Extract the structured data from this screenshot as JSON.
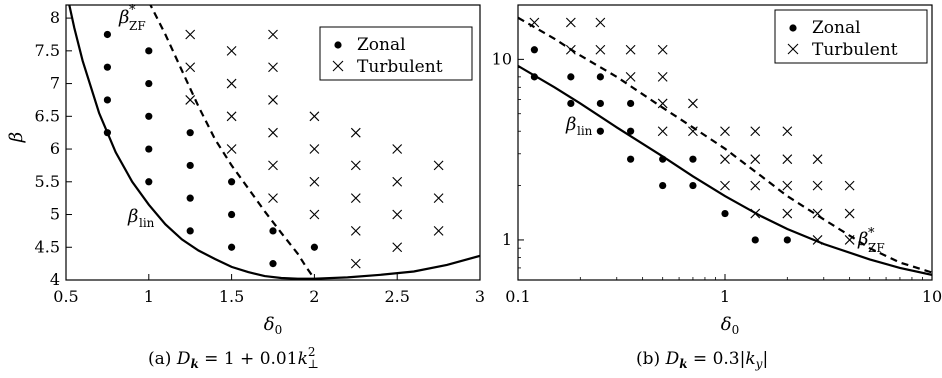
{
  "chart_data": [
    {
      "type": "scatter",
      "panel": "a",
      "caption": "(a) D_k = 1 + 0.01k_⊥²",
      "xlabel": "δ₀",
      "ylabel": "β",
      "xlim": [
        0.5,
        3
      ],
      "ylim": [
        4,
        8.2
      ],
      "yscale": "linear",
      "xticks": [
        "0.5",
        "1",
        "1.5",
        "2",
        "2.5",
        "3"
      ],
      "yticks": [
        "4",
        "4.5",
        "5",
        "5.5",
        "6",
        "6.5",
        "7",
        "7.5",
        "8"
      ],
      "legend": {
        "position": "top-right",
        "entries": [
          "Zonal",
          "Turbulent"
        ]
      },
      "series": [
        {
          "name": "Zonal",
          "marker": "dot",
          "points": [
            [
              0.75,
              7.75
            ],
            [
              0.75,
              7.25
            ],
            [
              0.75,
              6.75
            ],
            [
              0.75,
              6.25
            ],
            [
              1,
              7.5
            ],
            [
              1,
              7
            ],
            [
              1,
              6.5
            ],
            [
              1,
              6
            ],
            [
              1,
              5.5
            ],
            [
              1.25,
              6.25
            ],
            [
              1.25,
              5.75
            ],
            [
              1.25,
              5.25
            ],
            [
              1.25,
              4.75
            ],
            [
              1.5,
              5.5
            ],
            [
              1.5,
              5
            ],
            [
              1.5,
              4.5
            ],
            [
              1.75,
              4.75
            ],
            [
              1.75,
              4.25
            ],
            [
              2,
              4.5
            ]
          ]
        },
        {
          "name": "Turbulent",
          "marker": "cross",
          "points": [
            [
              1.25,
              7.75
            ],
            [
              1.25,
              7.25
            ],
            [
              1.25,
              6.75
            ],
            [
              1.5,
              7.5
            ],
            [
              1.5,
              7
            ],
            [
              1.5,
              6.5
            ],
            [
              1.5,
              6
            ],
            [
              1.75,
              7.75
            ],
            [
              1.75,
              7.25
            ],
            [
              1.75,
              6.75
            ],
            [
              1.75,
              6.25
            ],
            [
              1.75,
              5.75
            ],
            [
              1.75,
              5.25
            ],
            [
              2,
              6.5
            ],
            [
              2,
              6
            ],
            [
              2,
              5.5
            ],
            [
              2,
              5
            ],
            [
              2.25,
              6.25
            ],
            [
              2.25,
              5.75
            ],
            [
              2.25,
              5.25
            ],
            [
              2.25,
              4.75
            ],
            [
              2.25,
              4.25
            ],
            [
              2.5,
              6
            ],
            [
              2.5,
              5.5
            ],
            [
              2.5,
              5
            ],
            [
              2.5,
              4.5
            ],
            [
              2.75,
              5.75
            ],
            [
              2.75,
              5.25
            ],
            [
              2.75,
              4.75
            ]
          ]
        }
      ],
      "curves": [
        {
          "label": "β_lin",
          "style": "solid",
          "points": [
            [
              0.52,
              8.2
            ],
            [
              0.55,
              7.85
            ],
            [
              0.6,
              7.35
            ],
            [
              0.7,
              6.55
            ],
            [
              0.8,
              5.95
            ],
            [
              0.9,
              5.5
            ],
            [
              1.0,
              5.15
            ],
            [
              1.1,
              4.85
            ],
            [
              1.2,
              4.62
            ],
            [
              1.3,
              4.45
            ],
            [
              1.4,
              4.32
            ],
            [
              1.5,
              4.2
            ],
            [
              1.6,
              4.12
            ],
            [
              1.7,
              4.06
            ],
            [
              1.8,
              4.03
            ],
            [
              1.9,
              4.02
            ],
            [
              2.0,
              4.02
            ],
            [
              2.2,
              4.04
            ],
            [
              2.4,
              4.08
            ],
            [
              2.6,
              4.13
            ],
            [
              2.8,
              4.23
            ],
            [
              3.0,
              4.37
            ]
          ]
        },
        {
          "label": "β*_ZF",
          "style": "dashed",
          "points": [
            [
              1.0,
              8.25
            ],
            [
              1.1,
              7.75
            ],
            [
              1.2,
              7.2
            ],
            [
              1.3,
              6.65
            ],
            [
              1.4,
              6.15
            ],
            [
              1.5,
              5.75
            ],
            [
              1.6,
              5.4
            ],
            [
              1.7,
              5.05
            ],
            [
              1.8,
              4.72
            ],
            [
              1.9,
              4.4
            ],
            [
              1.95,
              4.2
            ],
            [
              2.0,
              4.02
            ]
          ]
        }
      ],
      "annotations": [
        {
          "text": "β*_ZF",
          "near": [
            1.0,
            8.1
          ]
        },
        {
          "text": "β_lin",
          "near": [
            0.85,
            4.9
          ]
        }
      ]
    },
    {
      "type": "scatter",
      "panel": "b",
      "caption": "(b) D_k = 0.3|k_y|",
      "xlabel": "δ₀",
      "ylabel": "",
      "xlim": [
        0.1,
        10
      ],
      "ylim": [
        0.6,
        20
      ],
      "xscale": "log",
      "yscale": "log",
      "xticks": [
        "0.1",
        "1",
        "10"
      ],
      "yticks": [
        "1",
        "10"
      ],
      "legend": {
        "position": "top-right",
        "entries": [
          "Zonal",
          "Turbulent"
        ]
      },
      "series": [
        {
          "name": "Zonal",
          "marker": "dot",
          "points": [
            [
              0.12,
              11.3
            ],
            [
              0.12,
              8.0
            ],
            [
              0.18,
              8.0
            ],
            [
              0.18,
              5.7
            ],
            [
              0.25,
              8.0
            ],
            [
              0.25,
              5.7
            ],
            [
              0.25,
              4.0
            ],
            [
              0.35,
              5.7
            ],
            [
              0.35,
              4.0
            ],
            [
              0.35,
              2.8
            ],
            [
              0.5,
              2.8
            ],
            [
              0.5,
              2.0
            ],
            [
              0.7,
              2.8
            ],
            [
              0.7,
              2.0
            ],
            [
              1.0,
              1.4
            ],
            [
              1.4,
              1.0
            ],
            [
              2.0,
              1.0
            ]
          ]
        },
        {
          "name": "Turbulent",
          "marker": "cross",
          "points": [
            [
              0.12,
              16
            ],
            [
              0.18,
              16
            ],
            [
              0.25,
              16
            ],
            [
              0.18,
              11.3
            ],
            [
              0.25,
              11.3
            ],
            [
              0.35,
              11.3
            ],
            [
              0.5,
              11.3
            ],
            [
              0.35,
              8.0
            ],
            [
              0.5,
              8.0
            ],
            [
              0.5,
              5.7
            ],
            [
              0.7,
              5.7
            ],
            [
              0.5,
              4.0
            ],
            [
              0.7,
              4.0
            ],
            [
              1.0,
              4.0
            ],
            [
              1.4,
              4.0
            ],
            [
              2.0,
              4.0
            ],
            [
              1.0,
              2.8
            ],
            [
              1.4,
              2.8
            ],
            [
              2.0,
              2.8
            ],
            [
              2.8,
              2.8
            ],
            [
              1.0,
              2.0
            ],
            [
              1.4,
              2.0
            ],
            [
              2.0,
              2.0
            ],
            [
              2.8,
              2.0
            ],
            [
              4.0,
              2.0
            ],
            [
              1.4,
              1.4
            ],
            [
              2.0,
              1.4
            ],
            [
              2.8,
              1.4
            ],
            [
              4.0,
              1.4
            ],
            [
              2.8,
              1.0
            ],
            [
              4.0,
              1.0
            ]
          ]
        }
      ],
      "curves": [
        {
          "label": "β_lin",
          "style": "solid",
          "points": [
            [
              0.1,
              9.2
            ],
            [
              0.15,
              7.0
            ],
            [
              0.2,
              5.7
            ],
            [
              0.3,
              4.2
            ],
            [
              0.5,
              2.9
            ],
            [
              0.7,
              2.25
            ],
            [
              1.0,
              1.75
            ],
            [
              1.5,
              1.35
            ],
            [
              2.0,
              1.15
            ],
            [
              3.0,
              0.95
            ],
            [
              5.0,
              0.78
            ],
            [
              7.0,
              0.7
            ],
            [
              10.0,
              0.64
            ]
          ]
        },
        {
          "label": "β*_ZF",
          "style": "dashed",
          "points": [
            [
              0.1,
              17.0
            ],
            [
              0.15,
              13.0
            ],
            [
              0.2,
              10.5
            ],
            [
              0.3,
              8.0
            ],
            [
              0.5,
              5.4
            ],
            [
              0.7,
              4.2
            ],
            [
              1.0,
              3.2
            ],
            [
              1.5,
              2.25
            ],
            [
              2.0,
              1.75
            ],
            [
              3.0,
              1.3
            ],
            [
              5.0,
              0.9
            ],
            [
              7.0,
              0.75
            ],
            [
              10.0,
              0.66
            ]
          ]
        }
      ],
      "annotations": [
        {
          "text": "β_lin",
          "near": [
            0.14,
            4.0
          ]
        },
        {
          "text": "β*_ZF",
          "near": [
            6.0,
            0.9
          ]
        }
      ]
    }
  ],
  "legend_labels": {
    "zonal": "Zonal",
    "turbulent": "Turbulent"
  }
}
